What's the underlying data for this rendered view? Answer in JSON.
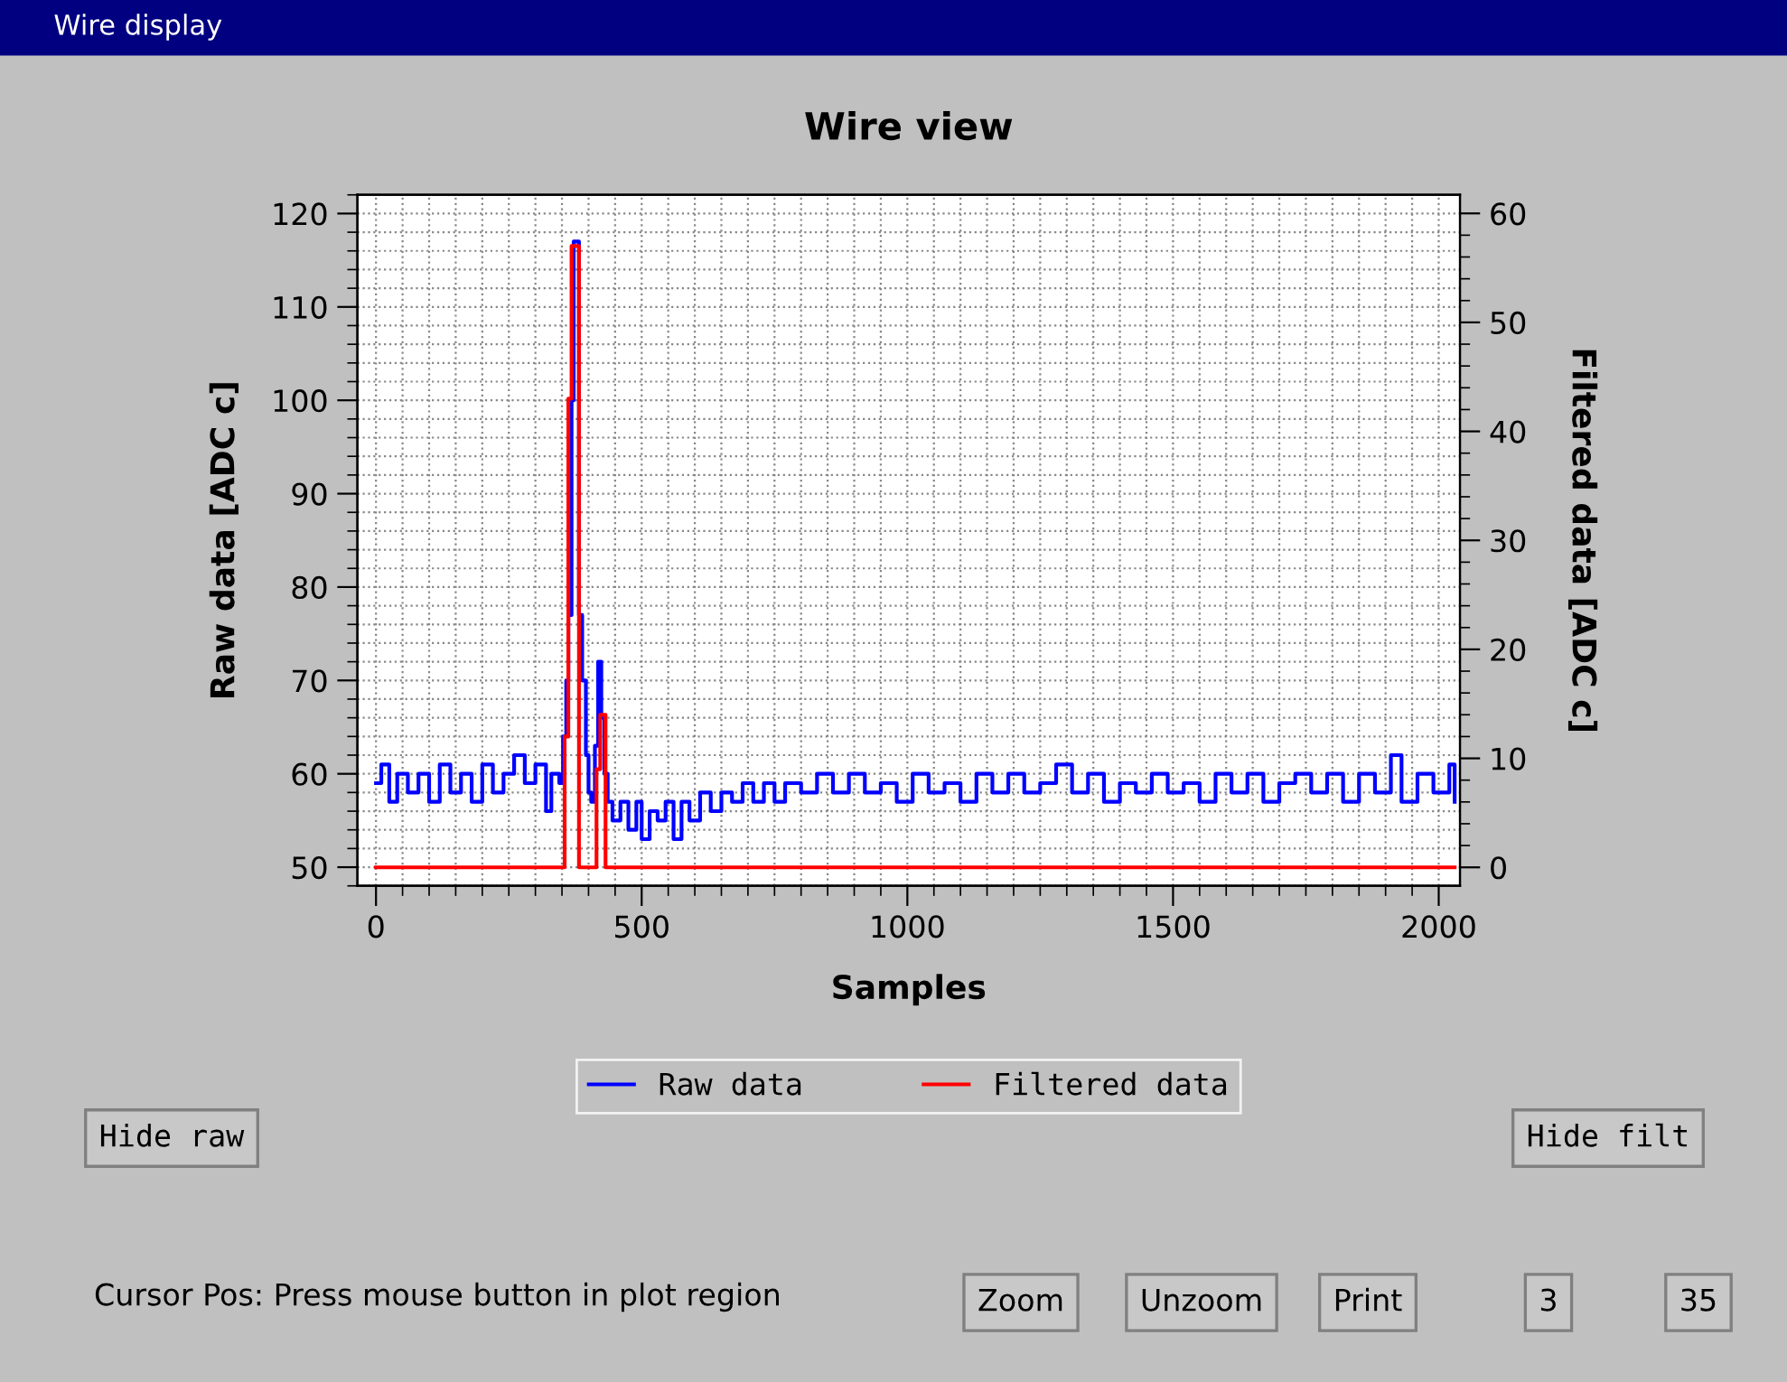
{
  "chart_data": {
    "type": "step",
    "title": "Wire view",
    "xlabel": "Samples",
    "ylabel": "Raw data [ADC c]",
    "y2label": "Filtered data [ADC c]",
    "xlim": [
      -35,
      2040
    ],
    "xticks": [
      0,
      500,
      1000,
      1500,
      2000
    ],
    "ylim": [
      48,
      122
    ],
    "yticks": [
      50,
      60,
      70,
      80,
      90,
      100,
      110,
      120
    ],
    "y2lim": [
      -1.7,
      61.7
    ],
    "y2ticks": [
      0,
      10,
      20,
      30,
      40,
      50,
      60
    ],
    "grid": true,
    "legend": "bottom",
    "line_style": "solid",
    "marker": "none",
    "series": [
      {
        "name": "Raw data",
        "color": "#0000ff",
        "x": [
          0,
          10,
          25,
          40,
          60,
          80,
          100,
          120,
          140,
          160,
          180,
          200,
          220,
          240,
          260,
          280,
          300,
          320,
          330,
          345,
          352,
          358,
          362,
          368,
          372,
          378,
          382,
          388,
          395,
          400,
          405,
          412,
          418,
          424,
          430,
          436,
          445,
          460,
          475,
          490,
          500,
          515,
          530,
          545,
          560,
          575,
          590,
          610,
          630,
          650,
          670,
          690,
          710,
          730,
          750,
          770,
          800,
          830,
          860,
          890,
          920,
          950,
          980,
          1010,
          1040,
          1070,
          1100,
          1130,
          1160,
          1190,
          1220,
          1250,
          1280,
          1310,
          1340,
          1370,
          1400,
          1430,
          1460,
          1490,
          1520,
          1550,
          1580,
          1610,
          1640,
          1670,
          1700,
          1730,
          1760,
          1790,
          1820,
          1850,
          1880,
          1910,
          1930,
          1960,
          1990,
          2020,
          2030
        ],
        "values": [
          59,
          61,
          57,
          60,
          58,
          60,
          57,
          61,
          58,
          60,
          57,
          61,
          58,
          60,
          62,
          59,
          61,
          56,
          60,
          59,
          64,
          70,
          77,
          100,
          117,
          117,
          77,
          70,
          62,
          58,
          57,
          63,
          72,
          66,
          60,
          57,
          55,
          57,
          54,
          57,
          53,
          56,
          55,
          57,
          53,
          57,
          55,
          58,
          56,
          58,
          57,
          59,
          57,
          59,
          57,
          59,
          58,
          60,
          58,
          60,
          58,
          59,
          57,
          60,
          58,
          59,
          57,
          60,
          58,
          60,
          58,
          59,
          61,
          58,
          60,
          57,
          59,
          58,
          60,
          58,
          59,
          57,
          60,
          58,
          60,
          57,
          59,
          60,
          58,
          60,
          57,
          60,
          58,
          62,
          57,
          60,
          58,
          61,
          57
        ]
      },
      {
        "name": "Filtered data",
        "color": "#ff0000",
        "axis": "y2",
        "x": [
          0,
          352,
          355,
          362,
          368,
          378,
          382,
          412,
          415,
          422,
          432,
          2030
        ],
        "values": [
          0,
          0,
          12,
          43,
          57,
          57,
          0,
          0,
          9,
          14,
          0,
          0
        ]
      }
    ],
    "annotations": [
      "Wire display",
      "Hide raw",
      "Hide filt",
      "Cursor Pos: Press mouse button in plot region",
      "Zoom",
      "Unzoom",
      "Print",
      "3",
      "35"
    ]
  }
}
